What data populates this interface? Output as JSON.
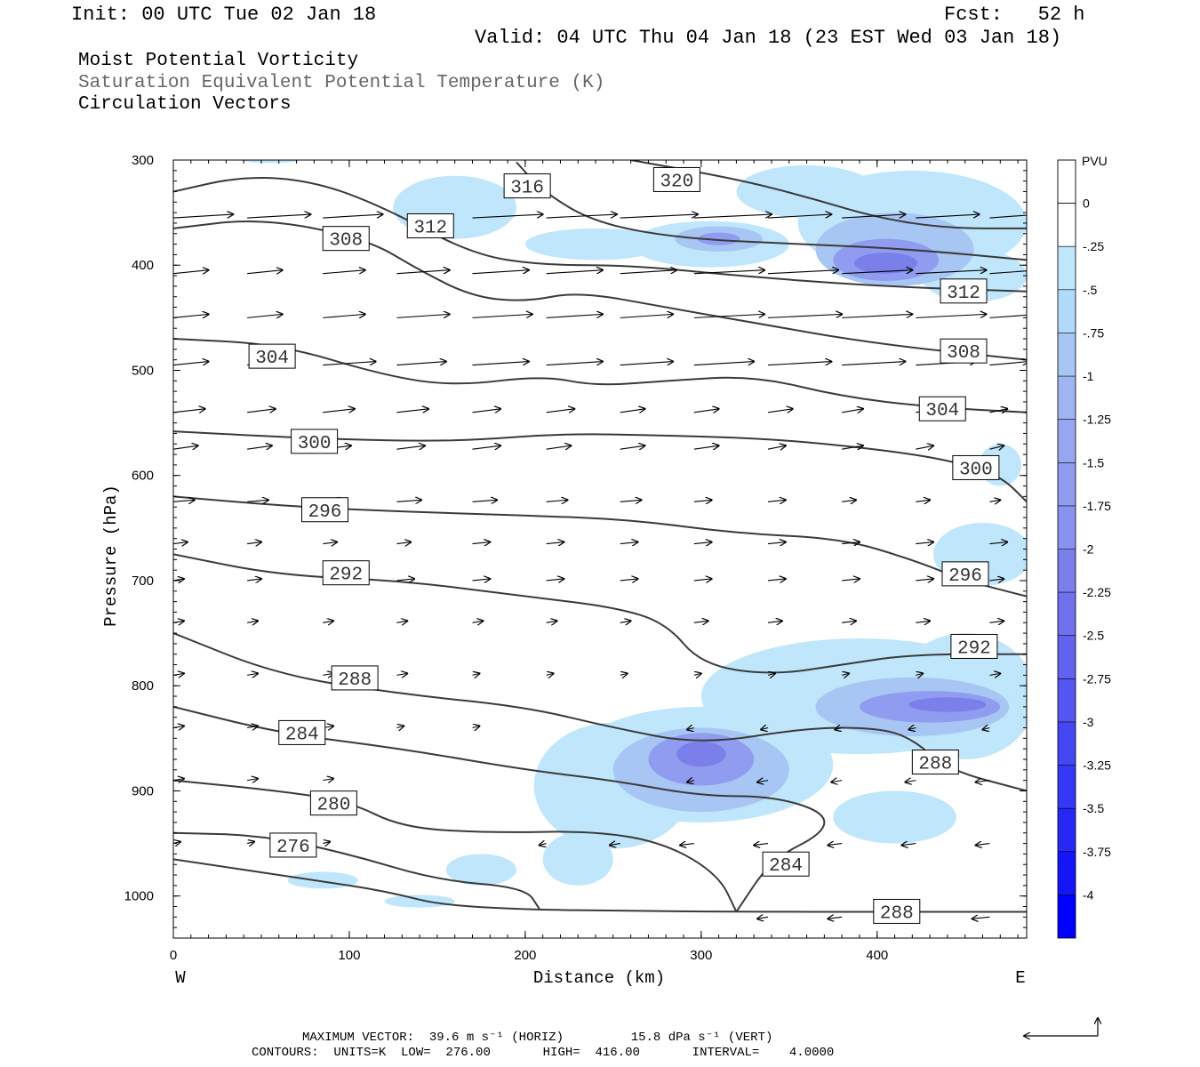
{
  "header": {
    "init": "Init: 00 UTC Tue 02 Jan 18",
    "fcst": "Fcst:   52 h",
    "valid": "Valid: 04 UTC Thu 04 Jan 18 (23 EST Wed 03 Jan 18)",
    "field1": "Moist Potential Vorticity",
    "field2": "Saturation Equivalent Potential Temperature (K)",
    "field3": "Circulation Vectors"
  },
  "colors": {
    "contour": "#3a3a3a",
    "shade_light": "#bfe6fb",
    "shade_mid": "#a8c6f3",
    "shade_strong": "#8f9cf0",
    "shade_core": "#7b7fea"
  },
  "footer": {
    "max_vector_line": "MAXIMUM VECTOR:  39.6 m s⁻¹ (HORIZ)         15.8 dPa s⁻¹ (VERT)",
    "contours_line": "CONTOURS:  UNITS=K  LOW=  276.00       HIGH=  416.00       INTERVAL=    4.0000"
  },
  "chart_data": {
    "type": "cross-section",
    "title": "Moist Potential Vorticity",
    "xlabel": "Distance (km)",
    "ylabel": "Pressure (hPa)",
    "xlim": [
      0,
      485
    ],
    "ylim": [
      1040,
      300
    ],
    "x_ticks": [
      0,
      100,
      200,
      300,
      400
    ],
    "y_ticks": [
      300,
      400,
      500,
      600,
      700,
      800,
      900,
      1000
    ],
    "x_end_labels": {
      "left": "W",
      "right": "E"
    },
    "colorbar": {
      "unit": "PVU",
      "ticks": [
        "0",
        "-.25",
        "-.5",
        "-.75",
        "-1",
        "-1.25",
        "-1.5",
        "-1.75",
        "-2",
        "-2.25",
        "-2.5",
        "-2.75",
        "-3",
        "-3.25",
        "-3.5",
        "-3.75",
        "-4"
      ],
      "colors": [
        "#ffffff",
        "#bfe6fb",
        "#b1d9f8",
        "#a8c6f3",
        "#9fb4f2",
        "#97a6f1",
        "#8f9cf0",
        "#8892ef",
        "#7b7fea",
        "#6f72ec",
        "#6163ee",
        "#5356f0",
        "#4447f2",
        "#3538f4",
        "#2628f6",
        "#1416f8",
        "#0000ff"
      ]
    },
    "contours": [
      {
        "label": "276",
        "points": [
          [
            0,
            940
          ],
          [
            50,
            942
          ],
          [
            100,
            960
          ],
          [
            150,
            985
          ],
          [
            200,
            992
          ],
          [
            208,
            1012
          ]
        ],
        "label_at": [
          55,
          952
        ]
      },
      {
        "label": "280",
        "points": [
          [
            0,
            890
          ],
          [
            60,
            900
          ],
          [
            100,
            910
          ],
          [
            130,
            935
          ],
          [
            180,
            940
          ],
          [
            240,
            938
          ],
          [
            280,
            950
          ],
          [
            310,
            980
          ],
          [
            320,
            1015
          ]
        ],
        "label_at": [
          78,
          912
        ]
      },
      {
        "label": "284",
        "points": [
          [
            0,
            820
          ],
          [
            60,
            845
          ],
          [
            130,
            860
          ],
          [
            200,
            880
          ],
          [
            250,
            890
          ],
          [
            300,
            905
          ],
          [
            340,
            905
          ],
          [
            370,
            920
          ],
          [
            370,
            940
          ],
          [
            340,
            965
          ],
          [
            320,
            1015
          ]
        ],
        "label_at": [
          335,
          970
        ]
      },
      {
        "label": "284",
        "points": [
          [
            0,
            820
          ]
        ],
        "label_at": [
          60,
          845
        ]
      },
      {
        "label": "288",
        "points": [
          [
            0,
            750
          ],
          [
            60,
            790
          ],
          [
            130,
            808
          ],
          [
            200,
            820
          ],
          [
            250,
            840
          ],
          [
            300,
            856
          ],
          [
            360,
            840
          ],
          [
            400,
            840
          ],
          [
            420,
            850
          ],
          [
            440,
            880
          ],
          [
            485,
            900
          ]
        ],
        "label_at": [
          420,
          873
        ]
      },
      {
        "label": "288",
        "points": [
          [
            0,
            965
          ],
          [
            80,
            985
          ],
          [
            120,
            995
          ],
          [
            160,
            1012
          ],
          [
            300,
            1015
          ],
          [
            430,
            1015
          ],
          [
            485,
            1015
          ]
        ],
        "label_at": [
          398,
          1015
        ]
      },
      {
        "label": "288",
        "points": [
          [
            0,
            965
          ]
        ],
        "label_at": [
          90,
          793
        ]
      },
      {
        "label": "292",
        "points": [
          [
            0,
            675
          ],
          [
            60,
            695
          ],
          [
            130,
            700
          ],
          [
            200,
            715
          ],
          [
            250,
            725
          ],
          [
            280,
            740
          ],
          [
            300,
            780
          ],
          [
            340,
            790
          ],
          [
            380,
            780
          ],
          [
            420,
            770
          ],
          [
            485,
            770
          ]
        ],
        "label_at": [
          442,
          763
        ]
      },
      {
        "label": "292",
        "points": [
          [
            0,
            675
          ]
        ],
        "label_at": [
          85,
          693
        ]
      },
      {
        "label": "296",
        "points": [
          [
            0,
            620
          ],
          [
            70,
            630
          ],
          [
            140,
            635
          ],
          [
            200,
            638
          ],
          [
            260,
            642
          ],
          [
            320,
            655
          ],
          [
            380,
            660
          ],
          [
            420,
            680
          ],
          [
            450,
            700
          ],
          [
            485,
            715
          ]
        ],
        "label_at": [
          437,
          694
        ]
      },
      {
        "label": "296",
        "points": [
          [
            0,
            620
          ]
        ],
        "label_at": [
          73,
          633
        ]
      },
      {
        "label": "300",
        "points": [
          [
            0,
            558
          ],
          [
            80,
            565
          ],
          [
            160,
            568
          ],
          [
            220,
            560
          ],
          [
            280,
            562
          ],
          [
            340,
            565
          ],
          [
            400,
            575
          ],
          [
            440,
            585
          ],
          [
            470,
            600
          ],
          [
            485,
            625
          ]
        ],
        "label_at": [
          443,
          593
        ]
      },
      {
        "label": "300",
        "points": [
          [
            0,
            558
          ]
        ],
        "label_at": [
          67,
          568
        ]
      },
      {
        "label": "304",
        "points": [
          [
            0,
            470
          ],
          [
            60,
            475
          ],
          [
            120,
            505
          ],
          [
            160,
            515
          ],
          [
            210,
            505
          ],
          [
            240,
            515
          ],
          [
            280,
            510
          ],
          [
            330,
            505
          ],
          [
            380,
            525
          ],
          [
            430,
            535
          ],
          [
            485,
            540
          ]
        ],
        "label_at": [
          424,
          537
        ]
      },
      {
        "label": "304",
        "points": [
          [
            0,
            470
          ]
        ],
        "label_at": [
          43,
          487
        ]
      },
      {
        "label": "308",
        "points": [
          [
            0,
            365
          ],
          [
            50,
            355
          ],
          [
            110,
            375
          ],
          [
            140,
            405
          ],
          [
            170,
            430
          ],
          [
            200,
            435
          ],
          [
            230,
            425
          ],
          [
            280,
            440
          ],
          [
            330,
            455
          ],
          [
            400,
            475
          ],
          [
            485,
            490
          ]
        ],
        "label_at": [
          436,
          482
        ]
      },
      {
        "label": "308",
        "points": [
          [
            0,
            365
          ]
        ],
        "label_at": [
          85,
          375
        ]
      },
      {
        "label": "312",
        "points": [
          [
            0,
            330
          ],
          [
            40,
            315
          ],
          [
            80,
            320
          ],
          [
            120,
            345
          ],
          [
            170,
            390
          ],
          [
            210,
            400
          ],
          [
            260,
            400
          ],
          [
            320,
            410
          ],
          [
            400,
            420
          ],
          [
            485,
            425
          ]
        ],
        "label_at": [
          436,
          425
        ]
      },
      {
        "label": "312",
        "points": [
          [
            0,
            330
          ]
        ],
        "label_at": [
          133,
          363
        ]
      },
      {
        "label": "316",
        "points": [
          [
            195,
            302
          ],
          [
            210,
            330
          ],
          [
            240,
            360
          ],
          [
            290,
            375
          ],
          [
            360,
            380
          ],
          [
            420,
            385
          ],
          [
            485,
            395
          ]
        ],
        "label_at": [
          188,
          325
        ]
      },
      {
        "label": "320",
        "points": [
          [
            260,
            300
          ],
          [
            320,
            318
          ],
          [
            360,
            335
          ],
          [
            400,
            355
          ],
          [
            440,
            365
          ],
          [
            485,
            365
          ]
        ],
        "label_at": [
          273,
          319
        ]
      }
    ],
    "vectors": {
      "note": "circulation vectors (horizontal m/s, vertical dPa/s)",
      "max_horiz": 39.6,
      "max_vert": 15.8
    }
  }
}
